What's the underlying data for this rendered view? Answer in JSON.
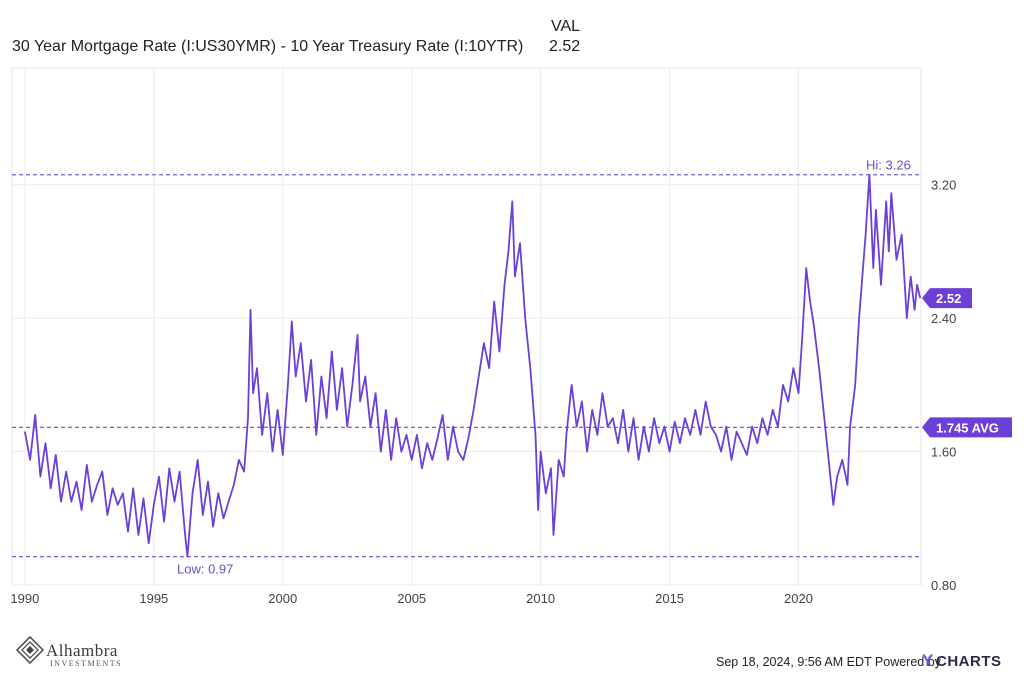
{
  "legend": {
    "series_label": "30 Year Mortgage Rate (I:US30YMR) - 10 Year Treasury Rate (I:10YTR)",
    "column_header": "VAL",
    "value": "2.52"
  },
  "chart_data": {
    "type": "line",
    "series": [
      {
        "name": "30 Year Mortgage Rate (I:US30YMR) - 10 Year Treasury Rate (I:10YTR)",
        "points": [
          [
            1990.0,
            1.72
          ],
          [
            1990.2,
            1.55
          ],
          [
            1990.4,
            1.82
          ],
          [
            1990.6,
            1.45
          ],
          [
            1990.8,
            1.65
          ],
          [
            1991.0,
            1.38
          ],
          [
            1991.2,
            1.58
          ],
          [
            1991.4,
            1.3
          ],
          [
            1991.6,
            1.48
          ],
          [
            1991.8,
            1.3
          ],
          [
            1992.0,
            1.42
          ],
          [
            1992.2,
            1.25
          ],
          [
            1992.4,
            1.52
          ],
          [
            1992.6,
            1.3
          ],
          [
            1992.8,
            1.4
          ],
          [
            1993.0,
            1.48
          ],
          [
            1993.2,
            1.22
          ],
          [
            1993.4,
            1.38
          ],
          [
            1993.6,
            1.28
          ],
          [
            1993.8,
            1.35
          ],
          [
            1994.0,
            1.12
          ],
          [
            1994.2,
            1.38
          ],
          [
            1994.4,
            1.1
          ],
          [
            1994.6,
            1.32
          ],
          [
            1994.8,
            1.05
          ],
          [
            1995.0,
            1.28
          ],
          [
            1995.2,
            1.45
          ],
          [
            1995.4,
            1.18
          ],
          [
            1995.6,
            1.5
          ],
          [
            1995.8,
            1.3
          ],
          [
            1996.0,
            1.48
          ],
          [
            1996.2,
            1.12
          ],
          [
            1996.3,
            0.97
          ],
          [
            1996.5,
            1.35
          ],
          [
            1996.7,
            1.55
          ],
          [
            1996.9,
            1.22
          ],
          [
            1997.1,
            1.42
          ],
          [
            1997.3,
            1.15
          ],
          [
            1997.5,
            1.35
          ],
          [
            1997.7,
            1.2
          ],
          [
            1997.9,
            1.3
          ],
          [
            1998.1,
            1.4
          ],
          [
            1998.3,
            1.55
          ],
          [
            1998.5,
            1.48
          ],
          [
            1998.65,
            1.8
          ],
          [
            1998.75,
            2.45
          ],
          [
            1998.85,
            1.95
          ],
          [
            1999.0,
            2.1
          ],
          [
            1999.2,
            1.7
          ],
          [
            1999.4,
            1.95
          ],
          [
            1999.6,
            1.6
          ],
          [
            1999.8,
            1.85
          ],
          [
            2000.0,
            1.58
          ],
          [
            2000.2,
            2.0
          ],
          [
            2000.35,
            2.38
          ],
          [
            2000.5,
            2.05
          ],
          [
            2000.7,
            2.25
          ],
          [
            2000.9,
            1.9
          ],
          [
            2001.1,
            2.15
          ],
          [
            2001.3,
            1.7
          ],
          [
            2001.5,
            2.05
          ],
          [
            2001.7,
            1.8
          ],
          [
            2001.9,
            2.2
          ],
          [
            2002.1,
            1.85
          ],
          [
            2002.3,
            2.1
          ],
          [
            2002.5,
            1.75
          ],
          [
            2002.7,
            2.0
          ],
          [
            2002.9,
            2.3
          ],
          [
            2003.0,
            1.9
          ],
          [
            2003.2,
            2.05
          ],
          [
            2003.4,
            1.75
          ],
          [
            2003.6,
            1.95
          ],
          [
            2003.8,
            1.6
          ],
          [
            2004.0,
            1.85
          ],
          [
            2004.2,
            1.55
          ],
          [
            2004.4,
            1.8
          ],
          [
            2004.6,
            1.6
          ],
          [
            2004.8,
            1.7
          ],
          [
            2005.0,
            1.55
          ],
          [
            2005.2,
            1.7
          ],
          [
            2005.4,
            1.5
          ],
          [
            2005.6,
            1.65
          ],
          [
            2005.8,
            1.55
          ],
          [
            2006.0,
            1.68
          ],
          [
            2006.2,
            1.82
          ],
          [
            2006.4,
            1.55
          ],
          [
            2006.6,
            1.75
          ],
          [
            2006.8,
            1.6
          ],
          [
            2007.0,
            1.55
          ],
          [
            2007.2,
            1.68
          ],
          [
            2007.4,
            1.85
          ],
          [
            2007.6,
            2.05
          ],
          [
            2007.8,
            2.25
          ],
          [
            2008.0,
            2.1
          ],
          [
            2008.2,
            2.5
          ],
          [
            2008.4,
            2.2
          ],
          [
            2008.6,
            2.6
          ],
          [
            2008.75,
            2.8
          ],
          [
            2008.9,
            3.1
          ],
          [
            2009.0,
            2.65
          ],
          [
            2009.2,
            2.85
          ],
          [
            2009.4,
            2.4
          ],
          [
            2009.6,
            2.1
          ],
          [
            2009.8,
            1.7
          ],
          [
            2009.9,
            1.25
          ],
          [
            2010.0,
            1.6
          ],
          [
            2010.2,
            1.35
          ],
          [
            2010.4,
            1.5
          ],
          [
            2010.5,
            1.1
          ],
          [
            2010.7,
            1.55
          ],
          [
            2010.9,
            1.45
          ],
          [
            2011.0,
            1.7
          ],
          [
            2011.2,
            2.0
          ],
          [
            2011.4,
            1.75
          ],
          [
            2011.6,
            1.9
          ],
          [
            2011.8,
            1.6
          ],
          [
            2012.0,
            1.85
          ],
          [
            2012.2,
            1.7
          ],
          [
            2012.4,
            1.95
          ],
          [
            2012.6,
            1.75
          ],
          [
            2012.8,
            1.8
          ],
          [
            2013.0,
            1.65
          ],
          [
            2013.2,
            1.85
          ],
          [
            2013.4,
            1.6
          ],
          [
            2013.6,
            1.8
          ],
          [
            2013.8,
            1.55
          ],
          [
            2014.0,
            1.75
          ],
          [
            2014.2,
            1.6
          ],
          [
            2014.4,
            1.8
          ],
          [
            2014.6,
            1.65
          ],
          [
            2014.8,
            1.75
          ],
          [
            2015.0,
            1.6
          ],
          [
            2015.2,
            1.78
          ],
          [
            2015.4,
            1.65
          ],
          [
            2015.6,
            1.8
          ],
          [
            2015.8,
            1.7
          ],
          [
            2016.0,
            1.85
          ],
          [
            2016.2,
            1.7
          ],
          [
            2016.4,
            1.9
          ],
          [
            2016.6,
            1.75
          ],
          [
            2016.8,
            1.7
          ],
          [
            2017.0,
            1.6
          ],
          [
            2017.2,
            1.75
          ],
          [
            2017.4,
            1.55
          ],
          [
            2017.6,
            1.72
          ],
          [
            2017.8,
            1.65
          ],
          [
            2018.0,
            1.58
          ],
          [
            2018.2,
            1.75
          ],
          [
            2018.4,
            1.65
          ],
          [
            2018.6,
            1.8
          ],
          [
            2018.8,
            1.7
          ],
          [
            2019.0,
            1.85
          ],
          [
            2019.2,
            1.75
          ],
          [
            2019.4,
            2.0
          ],
          [
            2019.6,
            1.9
          ],
          [
            2019.8,
            2.1
          ],
          [
            2020.0,
            1.95
          ],
          [
            2020.15,
            2.3
          ],
          [
            2020.3,
            2.7
          ],
          [
            2020.45,
            2.5
          ],
          [
            2020.6,
            2.35
          ],
          [
            2020.8,
            2.1
          ],
          [
            2021.0,
            1.8
          ],
          [
            2021.2,
            1.5
          ],
          [
            2021.35,
            1.28
          ],
          [
            2021.5,
            1.45
          ],
          [
            2021.7,
            1.55
          ],
          [
            2021.9,
            1.4
          ],
          [
            2022.0,
            1.75
          ],
          [
            2022.2,
            2.0
          ],
          [
            2022.35,
            2.4
          ],
          [
            2022.5,
            2.7
          ],
          [
            2022.6,
            2.9
          ],
          [
            2022.75,
            3.26
          ],
          [
            2022.9,
            2.7
          ],
          [
            2023.0,
            3.05
          ],
          [
            2023.2,
            2.6
          ],
          [
            2023.4,
            3.1
          ],
          [
            2023.5,
            2.8
          ],
          [
            2023.6,
            3.15
          ],
          [
            2023.8,
            2.75
          ],
          [
            2024.0,
            2.9
          ],
          [
            2024.2,
            2.4
          ],
          [
            2024.35,
            2.65
          ],
          [
            2024.5,
            2.45
          ],
          [
            2024.6,
            2.6
          ],
          [
            2024.72,
            2.52
          ]
        ]
      }
    ],
    "x_ticks": [
      "1990",
      "1995",
      "2000",
      "2005",
      "2010",
      "2015",
      "2020"
    ],
    "x_tick_values": [
      1990,
      1995,
      2000,
      2005,
      2010,
      2015,
      2020
    ],
    "xlim": [
      1989.5,
      2024.75
    ],
    "y_ticks": [
      "0.80",
      "1.60",
      "2.40",
      "3.20"
    ],
    "y_tick_values": [
      0.8,
      1.6,
      2.4,
      3.2
    ],
    "ylim": [
      0.8,
      3.9
    ],
    "hi": {
      "label": "Hi: 3.26",
      "value": 3.26
    },
    "low": {
      "label": "Low: 0.97",
      "value": 0.97
    },
    "avg": {
      "label": "1.745 AVG",
      "value": 1.745
    },
    "last": {
      "label": "2.52",
      "value": 2.52
    },
    "grid": true,
    "line_color": "#6c3fd6",
    "ref_line_color": "#7a5cd6"
  },
  "footer": {
    "timestamp": "Sep 18, 2024, 9:56 AM EDT Powered by",
    "ycharts_y": "Y",
    "ycharts_rest": "CHARTS",
    "logo_name": "Alhambra",
    "logo_sub": "INVESTMENTS"
  }
}
